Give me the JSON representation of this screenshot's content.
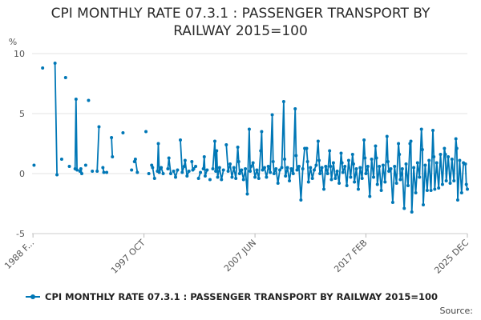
{
  "page": {
    "title_line1": "CPI MONTHLY RATE 07.3.1 : PASSENGER TRANSPORT BY",
    "title_line2": "RAILWAY 2015=100",
    "source_label": "Source:"
  },
  "chart_data": {
    "type": "line",
    "title": "CPI MONTHLY RATE 07.3.1 : PASSENGER TRANSPORT BY RAILWAY 2015=100",
    "ylabel": "%",
    "xlabel": "",
    "ylim": [
      -5,
      10
    ],
    "yticks": [
      -5,
      0,
      5,
      10
    ],
    "xlim": [
      1988.0,
      2025.92
    ],
    "xticks": [
      {
        "label": "1988 F...",
        "x": 1988.08
      },
      {
        "label": "1997 OCT",
        "x": 1997.75
      },
      {
        "label": "2007 JUN",
        "x": 2007.42
      },
      {
        "label": "2017 FEB",
        "x": 2017.08
      },
      {
        "label": "2025 DEC",
        "x": 2025.92
      }
    ],
    "grid": true,
    "legend": "bottom",
    "series": [
      {
        "name": "CPI MONTHLY RATE 07.3.1 : PASSENGER TRANSPORT BY RAILWAY 2015=100",
        "color": "#0077b6",
        "points": [
          [
            1988.17,
            0.7
          ],
          [
            1988.92,
            8.8
          ],
          [
            1990.0,
            9.2
          ],
          [
            1990.17,
            -0.1
          ],
          [
            1990.58,
            1.2
          ],
          [
            1990.92,
            8.0
          ],
          [
            1991.25,
            0.6
          ],
          [
            1991.75,
            0.4
          ],
          [
            1991.83,
            6.2
          ],
          [
            1991.92,
            0.3
          ],
          [
            1992.17,
            0.2
          ],
          [
            1992.25,
            0.4
          ],
          [
            1992.33,
            0.0
          ],
          [
            1992.67,
            0.7
          ],
          [
            1992.92,
            6.1
          ],
          [
            1993.25,
            0.2
          ],
          [
            1993.67,
            0.2
          ],
          [
            1993.83,
            3.9
          ],
          [
            1994.17,
            0.5
          ],
          [
            1994.25,
            0.1
          ],
          [
            1994.5,
            0.1
          ],
          [
            1994.92,
            3.0
          ],
          [
            1995.0,
            1.4
          ],
          [
            1995.92,
            3.4
          ],
          [
            1996.67,
            0.3
          ],
          [
            1996.92,
            1.0
          ],
          [
            1997.0,
            1.2
          ],
          [
            1997.17,
            0.1
          ],
          [
            1997.92,
            3.5
          ],
          [
            1998.17,
            0.0
          ],
          [
            1998.42,
            0.7
          ],
          [
            1998.5,
            0.5
          ],
          [
            1998.67,
            -0.4
          ],
          [
            1998.92,
            0.2
          ],
          [
            1999.0,
            2.5
          ],
          [
            1999.08,
            0.1
          ],
          [
            1999.25,
            0.5
          ],
          [
            1999.42,
            0.0
          ],
          [
            1999.83,
            0.4
          ],
          [
            1999.92,
            1.3
          ],
          [
            2000.08,
            0.0
          ],
          [
            2000.33,
            0.2
          ],
          [
            2000.5,
            -0.3
          ],
          [
            2000.67,
            0.3
          ],
          [
            2000.92,
            2.8
          ],
          [
            2001.08,
            0.1
          ],
          [
            2001.25,
            0.6
          ],
          [
            2001.33,
            1.1
          ],
          [
            2001.5,
            -0.2
          ],
          [
            2001.67,
            0.2
          ],
          [
            2001.92,
            1.0
          ],
          [
            2002.0,
            0.3
          ],
          [
            2002.08,
            0.4
          ],
          [
            2002.25,
            0.6
          ],
          [
            2002.5,
            -0.4
          ],
          [
            2002.67,
            0.1
          ],
          [
            2002.92,
            0.4
          ],
          [
            2003.0,
            1.4
          ],
          [
            2003.08,
            -0.2
          ],
          [
            2003.25,
            0.3
          ],
          [
            2003.5,
            -0.5
          ],
          [
            2003.75,
            0.4
          ],
          [
            2003.92,
            2.7
          ],
          [
            2004.0,
            0.2
          ],
          [
            2004.08,
            1.9
          ],
          [
            2004.17,
            -0.3
          ],
          [
            2004.33,
            0.5
          ],
          [
            2004.5,
            -0.5
          ],
          [
            2004.67,
            0.3
          ],
          [
            2004.92,
            2.4
          ],
          [
            2005.08,
            0.2
          ],
          [
            2005.25,
            0.8
          ],
          [
            2005.42,
            -0.3
          ],
          [
            2005.58,
            0.5
          ],
          [
            2005.75,
            -0.4
          ],
          [
            2005.92,
            2.2
          ],
          [
            2006.0,
            1.0
          ],
          [
            2006.08,
            0.0
          ],
          [
            2006.25,
            0.3
          ],
          [
            2006.42,
            -0.5
          ],
          [
            2006.58,
            0.4
          ],
          [
            2006.75,
            -1.7
          ],
          [
            2006.92,
            3.7
          ],
          [
            2007.0,
            0.2
          ],
          [
            2007.08,
            0.6
          ],
          [
            2007.25,
            0.9
          ],
          [
            2007.42,
            -0.3
          ],
          [
            2007.58,
            0.3
          ],
          [
            2007.75,
            -0.4
          ],
          [
            2007.92,
            1.9
          ],
          [
            2008.0,
            3.5
          ],
          [
            2008.08,
            0.3
          ],
          [
            2008.25,
            0.5
          ],
          [
            2008.42,
            -0.3
          ],
          [
            2008.58,
            0.6
          ],
          [
            2008.75,
            0.1
          ],
          [
            2008.92,
            4.9
          ],
          [
            2009.0,
            1.0
          ],
          [
            2009.08,
            0.0
          ],
          [
            2009.25,
            0.4
          ],
          [
            2009.42,
            -0.8
          ],
          [
            2009.58,
            0.3
          ],
          [
            2009.75,
            0.5
          ],
          [
            2009.92,
            6.0
          ],
          [
            2010.0,
            1.2
          ],
          [
            2010.08,
            -0.2
          ],
          [
            2010.25,
            0.5
          ],
          [
            2010.42,
            -0.6
          ],
          [
            2010.58,
            0.4
          ],
          [
            2010.75,
            0.0
          ],
          [
            2010.92,
            5.4
          ],
          [
            2011.0,
            1.5
          ],
          [
            2011.08,
            0.3
          ],
          [
            2011.25,
            0.6
          ],
          [
            2011.42,
            -2.2
          ],
          [
            2011.58,
            0.4
          ],
          [
            2011.75,
            2.1
          ],
          [
            2011.92,
            2.1
          ],
          [
            2012.0,
            1.0
          ],
          [
            2012.08,
            -0.7
          ],
          [
            2012.25,
            0.5
          ],
          [
            2012.42,
            -0.4
          ],
          [
            2012.58,
            0.3
          ],
          [
            2012.75,
            0.7
          ],
          [
            2012.92,
            2.7
          ],
          [
            2013.0,
            1.1
          ],
          [
            2013.08,
            0.0
          ],
          [
            2013.25,
            0.5
          ],
          [
            2013.42,
            -1.3
          ],
          [
            2013.58,
            0.6
          ],
          [
            2013.75,
            0.0
          ],
          [
            2013.92,
            1.9
          ],
          [
            2014.0,
            0.6
          ],
          [
            2014.08,
            -0.5
          ],
          [
            2014.25,
            0.9
          ],
          [
            2014.42,
            -0.4
          ],
          [
            2014.58,
            0.2
          ],
          [
            2014.75,
            -0.8
          ],
          [
            2014.92,
            1.7
          ],
          [
            2015.0,
            0.9
          ],
          [
            2015.08,
            0.1
          ],
          [
            2015.25,
            0.6
          ],
          [
            2015.42,
            -1.0
          ],
          [
            2015.58,
            1.1
          ],
          [
            2015.75,
            -0.3
          ],
          [
            2015.92,
            1.6
          ],
          [
            2016.0,
            0.8
          ],
          [
            2016.08,
            -0.7
          ],
          [
            2016.25,
            0.4
          ],
          [
            2016.42,
            -1.3
          ],
          [
            2016.58,
            0.5
          ],
          [
            2016.75,
            -0.4
          ],
          [
            2016.92,
            2.8
          ],
          [
            2017.0,
            1.3
          ],
          [
            2017.08,
            0.0
          ],
          [
            2017.25,
            0.6
          ],
          [
            2017.42,
            -1.9
          ],
          [
            2017.58,
            1.2
          ],
          [
            2017.75,
            -0.3
          ],
          [
            2017.92,
            2.3
          ],
          [
            2018.0,
            1.3
          ],
          [
            2018.08,
            -0.9
          ],
          [
            2018.25,
            0.6
          ],
          [
            2018.42,
            -1.4
          ],
          [
            2018.58,
            0.7
          ],
          [
            2018.75,
            -0.7
          ],
          [
            2018.92,
            3.1
          ],
          [
            2019.0,
            1.0
          ],
          [
            2019.08,
            0.2
          ],
          [
            2019.25,
            0.4
          ],
          [
            2019.42,
            -2.4
          ],
          [
            2019.58,
            0.6
          ],
          [
            2019.75,
            -0.8
          ],
          [
            2019.92,
            2.5
          ],
          [
            2020.0,
            1.6
          ],
          [
            2020.08,
            -0.5
          ],
          [
            2020.25,
            0.4
          ],
          [
            2020.42,
            -2.9
          ],
          [
            2020.58,
            0.8
          ],
          [
            2020.75,
            -1.0
          ],
          [
            2020.92,
            2.5
          ],
          [
            2021.0,
            2.7
          ],
          [
            2021.08,
            -3.2
          ],
          [
            2021.25,
            0.5
          ],
          [
            2021.42,
            -1.6
          ],
          [
            2021.58,
            0.9
          ],
          [
            2021.75,
            -0.3
          ],
          [
            2021.92,
            3.7
          ],
          [
            2022.0,
            2.0
          ],
          [
            2022.08,
            -2.6
          ],
          [
            2022.25,
            0.7
          ],
          [
            2022.42,
            -1.4
          ],
          [
            2022.58,
            1.1
          ],
          [
            2022.75,
            -1.4
          ],
          [
            2022.92,
            3.6
          ],
          [
            2023.0,
            1.4
          ],
          [
            2023.08,
            -1.3
          ],
          [
            2023.25,
            0.9
          ],
          [
            2023.42,
            -1.2
          ],
          [
            2023.58,
            1.6
          ],
          [
            2023.75,
            -0.9
          ],
          [
            2023.92,
            2.1
          ],
          [
            2024.0,
            1.6
          ],
          [
            2024.08,
            -0.6
          ],
          [
            2024.25,
            1.4
          ],
          [
            2024.42,
            -0.8
          ],
          [
            2024.58,
            1.2
          ],
          [
            2024.75,
            -0.6
          ],
          [
            2024.92,
            2.9
          ],
          [
            2025.0,
            2.1
          ],
          [
            2025.08,
            -2.2
          ],
          [
            2025.25,
            1.1
          ],
          [
            2025.42,
            -1.6
          ],
          [
            2025.58,
            0.9
          ],
          [
            2025.75,
            0.8
          ],
          [
            2025.83,
            -0.9
          ],
          [
            2025.92,
            -1.3
          ]
        ]
      }
    ]
  }
}
